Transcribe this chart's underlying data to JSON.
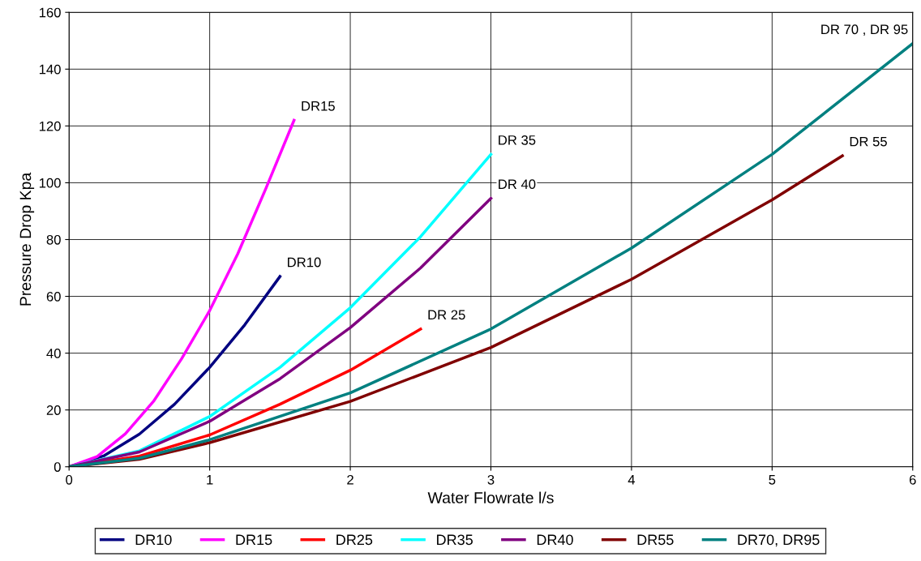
{
  "chart_data": {
    "type": "line",
    "xlabel": "Water Flowrate l/s",
    "ylabel": "Pressure Drop Kpa",
    "xlim": [
      0,
      6
    ],
    "xticks": [
      0,
      1,
      2,
      3,
      4,
      5,
      6
    ],
    "ylim": [
      0,
      160
    ],
    "yticks": [
      0,
      20,
      40,
      60,
      80,
      100,
      120,
      140,
      160
    ],
    "grid": true,
    "legend": "bottom",
    "marker": "none",
    "line_style": "solid",
    "series": [
      {
        "name": "DR10",
        "color": "#000080",
        "x": [
          0,
          0.25,
          0.5,
          0.75,
          1,
          1.25,
          1.5
        ],
        "values": [
          0,
          3.9,
          11.5,
          22,
          35,
          50,
          67
        ]
      },
      {
        "name": "DR15",
        "color": "#ff00ff",
        "x": [
          0,
          0.2,
          0.4,
          0.6,
          0.8,
          1,
          1.2,
          1.4,
          1.6
        ],
        "values": [
          0,
          3.6,
          11.6,
          23,
          38,
          55,
          75,
          98,
          122
        ]
      },
      {
        "name": "DR25",
        "color": "#ff0000",
        "x": [
          0,
          0.5,
          1,
          1.5,
          2,
          2.5
        ],
        "values": [
          0,
          3.7,
          11.2,
          22,
          34,
          48.5
        ]
      },
      {
        "name": "DR35",
        "color": "#00ffff",
        "x": [
          0,
          0.5,
          1,
          1.5,
          2,
          2.5,
          3
        ],
        "values": [
          0,
          5.6,
          17.7,
          35,
          56,
          81,
          110
        ]
      },
      {
        "name": "DR40",
        "color": "#800080",
        "x": [
          0,
          0.5,
          1,
          1.5,
          2,
          2.5,
          3
        ],
        "values": [
          0,
          5.2,
          16,
          31,
          49,
          70,
          94.5
        ]
      },
      {
        "name": "DR55",
        "color": "#800000",
        "x": [
          0,
          0.5,
          1,
          2,
          3,
          4,
          5,
          5.5
        ],
        "values": [
          0,
          2.6,
          8.5,
          23,
          42,
          66,
          94,
          109.5
        ]
      },
      {
        "name": "DR70, DR95",
        "color": "#008080",
        "x": [
          0,
          0.5,
          1,
          2,
          3,
          4,
          5,
          6
        ],
        "values": [
          0,
          3,
          9.5,
          26,
          48.5,
          77,
          110,
          149
        ]
      }
    ],
    "annotations": [
      {
        "text": "DR15",
        "x": 1.6,
        "y": 122
      },
      {
        "text": "DR10",
        "x": 1.5,
        "y": 67
      },
      {
        "text": "DR 35",
        "x": 3,
        "y": 110
      },
      {
        "text": "DR 40",
        "x": 3,
        "y": 94.5
      },
      {
        "text": "DR 25",
        "x": 2.5,
        "y": 48.5
      },
      {
        "text": "DR 55",
        "x": 5.5,
        "y": 109.5
      },
      {
        "text": "DR 70 , DR 95",
        "x": 6,
        "y": 149
      }
    ]
  }
}
